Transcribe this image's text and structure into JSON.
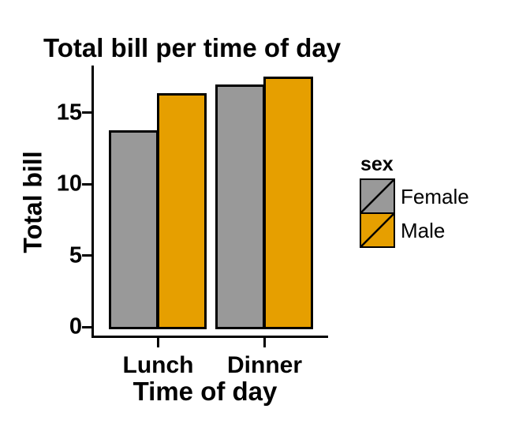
{
  "title": "Total bill per time of day",
  "axes": {
    "y_label": "Total bill",
    "x_label": "Time of day",
    "y_tick_labels": [
      "0",
      "5",
      "10",
      "15"
    ],
    "x_tick_labels": [
      "Lunch",
      "Dinner"
    ]
  },
  "legend": {
    "title": "sex",
    "items": [
      {
        "label": "Female",
        "color": "#999999",
        "swatch": "diagonal-slash"
      },
      {
        "label": "Male",
        "color": "#E69F00",
        "swatch": "diagonal-slash"
      }
    ]
  },
  "colors": {
    "bar_female": "#999999",
    "bar_male": "#E69F00",
    "outline": "#000000",
    "background": "#FFFFFF"
  },
  "chart_data": {
    "type": "bar",
    "categories": [
      "Lunch",
      "Dinner"
    ],
    "series": [
      {
        "name": "Female",
        "values": [
          13.6,
          16.8
        ]
      },
      {
        "name": "Male",
        "values": [
          16.2,
          17.4
        ]
      }
    ],
    "title": "Total bill per time of day",
    "xlabel": "Time of day",
    "ylabel": "Total bill",
    "ylim": [
      0,
      18.3
    ],
    "yticks": [
      0,
      5,
      10,
      15
    ],
    "grid": false,
    "legend_title": "sex",
    "legend_position": "right"
  }
}
